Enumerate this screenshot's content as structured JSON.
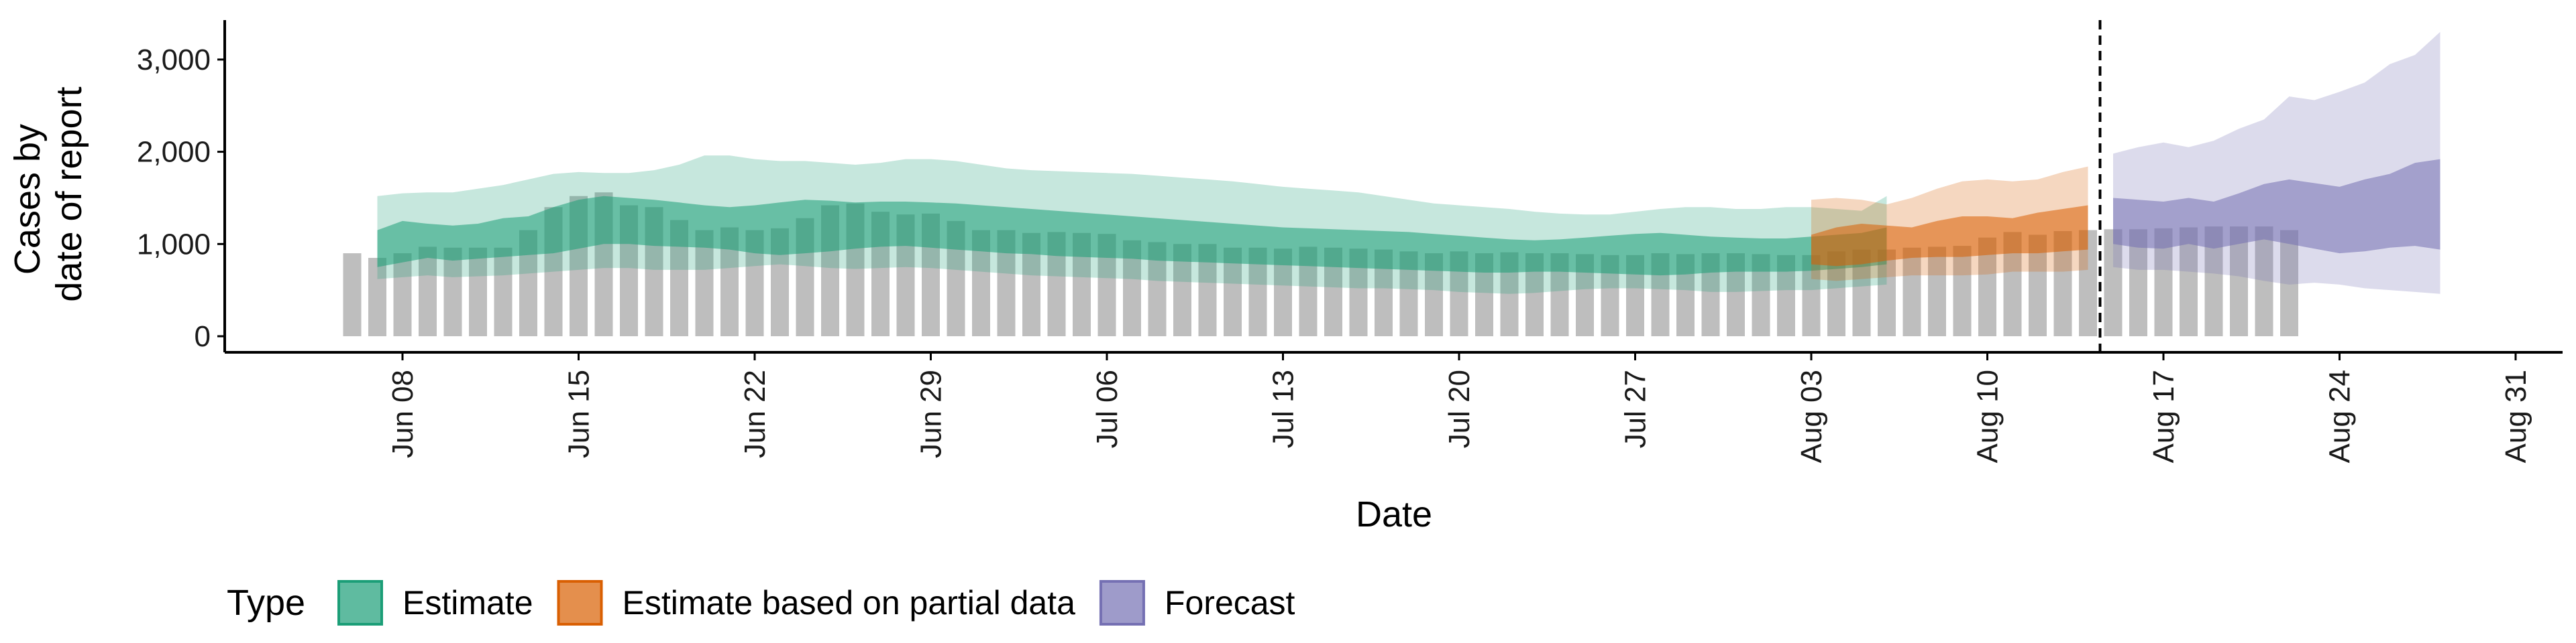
{
  "chart_data": {
    "type": "bar",
    "title": "",
    "xlabel": "Date",
    "ylabel_lines": [
      "Cases by",
      "date of report"
    ],
    "ylim": [
      0,
      3500
    ],
    "yticks": [
      0,
      1000,
      2000,
      3000
    ],
    "ytick_labels": [
      "0",
      "1,000",
      "2,000",
      "3,000"
    ],
    "x_start_date": "2020-06-06",
    "xticks": [
      "Jun 08",
      "Jun 15",
      "Jun 22",
      "Jun 29",
      "Jul 06",
      "Jul 13",
      "Jul 20",
      "Jul 27",
      "Aug 03",
      "Aug 10",
      "Aug 17",
      "Aug 24",
      "Aug 31"
    ],
    "xtick_dates": [
      "2020-06-08",
      "2020-06-15",
      "2020-06-22",
      "2020-06-29",
      "2020-07-06",
      "2020-07-13",
      "2020-07-20",
      "2020-07-27",
      "2020-08-03",
      "2020-08-10",
      "2020-08-17",
      "2020-08-24",
      "2020-08-31"
    ],
    "observed_cases": [
      900,
      850,
      900,
      970,
      960,
      960,
      960,
      1150,
      1400,
      1520,
      1560,
      1420,
      1400,
      1260,
      1150,
      1180,
      1150,
      1170,
      1280,
      1420,
      1440,
      1350,
      1320,
      1330,
      1250,
      1150,
      1150,
      1120,
      1130,
      1120,
      1110,
      1040,
      1020,
      1000,
      1000,
      960,
      960,
      950,
      970,
      960,
      950,
      940,
      920,
      900,
      920,
      900,
      910,
      900,
      900,
      890,
      880,
      880,
      900,
      890,
      900,
      900,
      890,
      880,
      880,
      920,
      940,
      940,
      960,
      970,
      980,
      1070,
      1130,
      1100,
      1140,
      1150,
      1160,
      1160,
      1170,
      1180,
      1190,
      1190,
      1190,
      1150
    ],
    "current_date_line": "2020-08-14",
    "series": [
      {
        "name": "Estimate",
        "color": "#1B9E77",
        "start_date": "2020-06-07",
        "inner_lower": [
          750,
          800,
          850,
          820,
          840,
          860,
          880,
          900,
          950,
          1000,
          1000,
          980,
          970,
          960,
          940,
          900,
          880,
          900,
          920,
          950,
          970,
          980,
          960,
          940,
          920,
          900,
          890,
          870,
          860,
          850,
          840,
          820,
          810,
          800,
          790,
          780,
          770,
          760,
          750,
          740,
          730,
          720,
          710,
          700,
          690,
          690,
          700,
          700,
          690,
          680,
          670,
          660,
          670,
          690,
          700,
          700,
          700,
          710,
          730,
          750,
          780
        ],
        "inner_upper": [
          1150,
          1250,
          1220,
          1200,
          1220,
          1280,
          1300,
          1400,
          1480,
          1520,
          1500,
          1480,
          1450,
          1420,
          1400,
          1420,
          1450,
          1480,
          1470,
          1450,
          1460,
          1460,
          1450,
          1440,
          1420,
          1400,
          1380,
          1360,
          1340,
          1320,
          1300,
          1280,
          1260,
          1240,
          1220,
          1200,
          1180,
          1170,
          1160,
          1150,
          1140,
          1130,
          1110,
          1090,
          1070,
          1050,
          1040,
          1050,
          1070,
          1090,
          1110,
          1120,
          1100,
          1080,
          1070,
          1060,
          1060,
          1080,
          1100,
          1120,
          1180
        ],
        "outer_lower": [
          620,
          640,
          660,
          640,
          650,
          660,
          680,
          700,
          720,
          740,
          740,
          720,
          720,
          720,
          740,
          760,
          780,
          760,
          740,
          730,
          740,
          750,
          740,
          720,
          700,
          680,
          660,
          650,
          640,
          630,
          620,
          600,
          590,
          580,
          570,
          560,
          550,
          540,
          530,
          520,
          520,
          510,
          500,
          480,
          470,
          460,
          470,
          490,
          510,
          520,
          520,
          510,
          500,
          480,
          480,
          490,
          500,
          500,
          520,
          540,
          560
        ],
        "outer_upper": [
          1520,
          1550,
          1560,
          1560,
          1600,
          1640,
          1700,
          1760,
          1780,
          1770,
          1770,
          1800,
          1860,
          1960,
          1960,
          1920,
          1900,
          1900,
          1880,
          1860,
          1880,
          1920,
          1920,
          1900,
          1860,
          1820,
          1800,
          1790,
          1780,
          1770,
          1760,
          1740,
          1720,
          1700,
          1680,
          1650,
          1620,
          1600,
          1580,
          1560,
          1520,
          1480,
          1440,
          1420,
          1400,
          1380,
          1350,
          1330,
          1320,
          1320,
          1350,
          1380,
          1400,
          1400,
          1380,
          1380,
          1400,
          1400,
          1380,
          1360,
          1520
        ]
      },
      {
        "name": "Estimate based on partial data",
        "color": "#D95F02",
        "start_date": "2020-08-03",
        "inner_lower": [
          780,
          760,
          780,
          820,
          850,
          860,
          860,
          880,
          900,
          900,
          920,
          940
        ],
        "inner_upper": [
          1100,
          1180,
          1220,
          1200,
          1180,
          1250,
          1300,
          1300,
          1280,
          1340,
          1380,
          1420
        ],
        "outer_lower": [
          620,
          600,
          620,
          640,
          660,
          660,
          660,
          670,
          700,
          700,
          700,
          720
        ],
        "outer_upper": [
          1480,
          1500,
          1480,
          1430,
          1500,
          1600,
          1680,
          1700,
          1680,
          1700,
          1780,
          1840
        ]
      },
      {
        "name": "Forecast",
        "color": "#7570B3",
        "start_date": "2020-08-15",
        "inner_lower": [
          1000,
          960,
          950,
          1000,
          950,
          1000,
          1050,
          1000,
          950,
          900,
          920,
          960,
          980,
          940
        ],
        "inner_upper": [
          1500,
          1480,
          1460,
          1500,
          1460,
          1550,
          1650,
          1700,
          1660,
          1620,
          1700,
          1760,
          1880,
          1920
        ],
        "outer_lower": [
          750,
          720,
          720,
          700,
          680,
          650,
          600,
          560,
          580,
          560,
          520,
          500,
          480,
          460
        ],
        "outer_upper": [
          1980,
          2050,
          2100,
          2050,
          2120,
          2250,
          2350,
          2600,
          2560,
          2650,
          2750,
          2950,
          3050,
          3300
        ]
      }
    ],
    "legend": {
      "title": "Type",
      "position": "bottom-left",
      "entries": [
        "Estimate",
        "Estimate based on partial data",
        "Forecast"
      ]
    },
    "grid": false,
    "colors": {
      "observed_bars": "#BEBEBE",
      "axis": "#000000",
      "reference_line": "#000000"
    }
  }
}
